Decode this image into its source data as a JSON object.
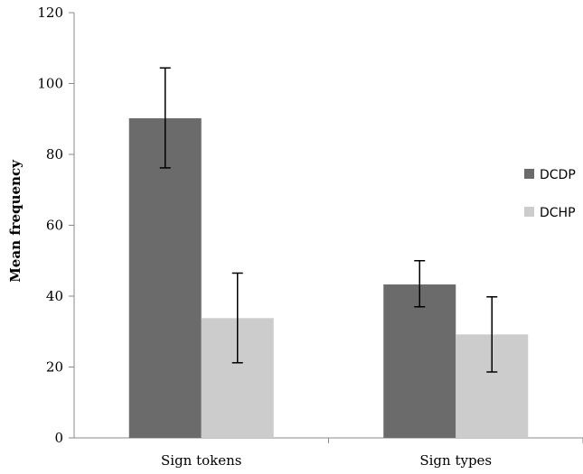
{
  "chart_data": {
    "type": "bar",
    "title": "",
    "xlabel": "",
    "ylabel": "Mean frequency",
    "ylim": [
      0,
      120
    ],
    "yticks": [
      0,
      20,
      40,
      60,
      80,
      100,
      120
    ],
    "grid": false,
    "legend_position": "right",
    "categories": [
      "Sign tokens",
      "Sign types"
    ],
    "series": [
      {
        "name": "DCDP",
        "color": "#6b6b6b",
        "values": [
          90.2,
          43.3
        ],
        "error_low": [
          76.2,
          37.0
        ],
        "error_high": [
          104.4,
          50.0
        ]
      },
      {
        "name": "DCHP",
        "color": "#cccccc",
        "values": [
          33.8,
          29.2
        ],
        "error_low": [
          21.2,
          18.6
        ],
        "error_high": [
          46.5,
          39.8
        ]
      }
    ]
  }
}
